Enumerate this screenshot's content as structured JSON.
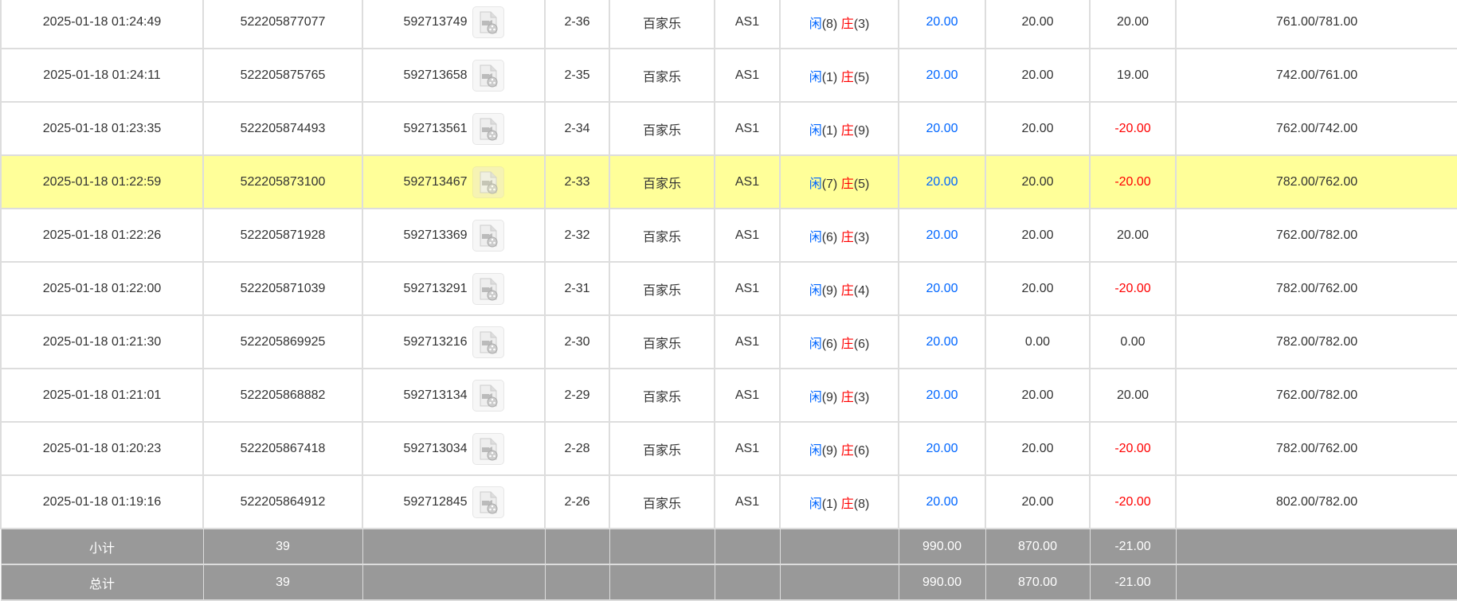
{
  "rows": [
    {
      "time": "2025-01-18 01:24:49",
      "order": "522205877077",
      "round": "592713749",
      "table": "2-36",
      "game": "百家乐",
      "room": "AS1",
      "player_label": "闲",
      "player": "(8)",
      "banker_label": "庄",
      "banker": "(3)",
      "bet": "20.00",
      "valid": "20.00",
      "win": "20.00",
      "balance": "761.00/781.00",
      "win_negative": false,
      "highlighted": false
    },
    {
      "time": "2025-01-18 01:24:11",
      "order": "522205875765",
      "round": "592713658",
      "table": "2-35",
      "game": "百家乐",
      "room": "AS1",
      "player_label": "闲",
      "player": "(1)",
      "banker_label": "庄",
      "banker": "(5)",
      "bet": "20.00",
      "valid": "20.00",
      "win": "19.00",
      "balance": "742.00/761.00",
      "win_negative": false,
      "highlighted": false
    },
    {
      "time": "2025-01-18 01:23:35",
      "order": "522205874493",
      "round": "592713561",
      "table": "2-34",
      "game": "百家乐",
      "room": "AS1",
      "player_label": "闲",
      "player": "(1)",
      "banker_label": "庄",
      "banker": "(9)",
      "bet": "20.00",
      "valid": "20.00",
      "win": "-20.00",
      "balance": "762.00/742.00",
      "win_negative": true,
      "highlighted": false
    },
    {
      "time": "2025-01-18 01:22:59",
      "order": "522205873100",
      "round": "592713467",
      "table": "2-33",
      "game": "百家乐",
      "room": "AS1",
      "player_label": "闲",
      "player": "(7)",
      "banker_label": "庄",
      "banker": "(5)",
      "bet": "20.00",
      "valid": "20.00",
      "win": "-20.00",
      "balance": "782.00/762.00",
      "win_negative": true,
      "highlighted": true
    },
    {
      "time": "2025-01-18 01:22:26",
      "order": "522205871928",
      "round": "592713369",
      "table": "2-32",
      "game": "百家乐",
      "room": "AS1",
      "player_label": "闲",
      "player": "(6)",
      "banker_label": "庄",
      "banker": "(3)",
      "bet": "20.00",
      "valid": "20.00",
      "win": "20.00",
      "balance": "762.00/782.00",
      "win_negative": false,
      "highlighted": false
    },
    {
      "time": "2025-01-18 01:22:00",
      "order": "522205871039",
      "round": "592713291",
      "table": "2-31",
      "game": "百家乐",
      "room": "AS1",
      "player_label": "闲",
      "player": "(9)",
      "banker_label": "庄",
      "banker": "(4)",
      "bet": "20.00",
      "valid": "20.00",
      "win": "-20.00",
      "balance": "782.00/762.00",
      "win_negative": true,
      "highlighted": false
    },
    {
      "time": "2025-01-18 01:21:30",
      "order": "522205869925",
      "round": "592713216",
      "table": "2-30",
      "game": "百家乐",
      "room": "AS1",
      "player_label": "闲",
      "player": "(6)",
      "banker_label": "庄",
      "banker": "(6)",
      "bet": "20.00",
      "valid": "0.00",
      "win": "0.00",
      "balance": "782.00/782.00",
      "win_negative": false,
      "highlighted": false
    },
    {
      "time": "2025-01-18 01:21:01",
      "order": "522205868882",
      "round": "592713134",
      "table": "2-29",
      "game": "百家乐",
      "room": "AS1",
      "player_label": "闲",
      "player": "(9)",
      "banker_label": "庄",
      "banker": "(3)",
      "bet": "20.00",
      "valid": "20.00",
      "win": "20.00",
      "balance": "762.00/782.00",
      "win_negative": false,
      "highlighted": false
    },
    {
      "time": "2025-01-18 01:20:23",
      "order": "522205867418",
      "round": "592713034",
      "table": "2-28",
      "game": "百家乐",
      "room": "AS1",
      "player_label": "闲",
      "player": "(9)",
      "banker_label": "庄",
      "banker": "(6)",
      "bet": "20.00",
      "valid": "20.00",
      "win": "-20.00",
      "balance": "782.00/762.00",
      "win_negative": true,
      "highlighted": false
    },
    {
      "time": "2025-01-18 01:19:16",
      "order": "522205864912",
      "round": "592712845",
      "table": "2-26",
      "game": "百家乐",
      "room": "AS1",
      "player_label": "闲",
      "player": "(1)",
      "banker_label": "庄",
      "banker": "(8)",
      "bet": "20.00",
      "valid": "20.00",
      "win": "-20.00",
      "balance": "802.00/782.00",
      "win_negative": true,
      "highlighted": false
    }
  ],
  "summary": [
    {
      "label": "小计",
      "count": "39",
      "bet": "990.00",
      "valid": "870.00",
      "win": "-21.00"
    },
    {
      "label": "总计",
      "count": "39",
      "bet": "990.00",
      "valid": "870.00",
      "win": "-21.00"
    }
  ],
  "icon": "video-file-icon",
  "colors": {
    "player": "#0066ff",
    "banker": "#ff0000",
    "negative": "#ff0000",
    "highlight": "#ffff99",
    "summary_bg": "#999999"
  }
}
